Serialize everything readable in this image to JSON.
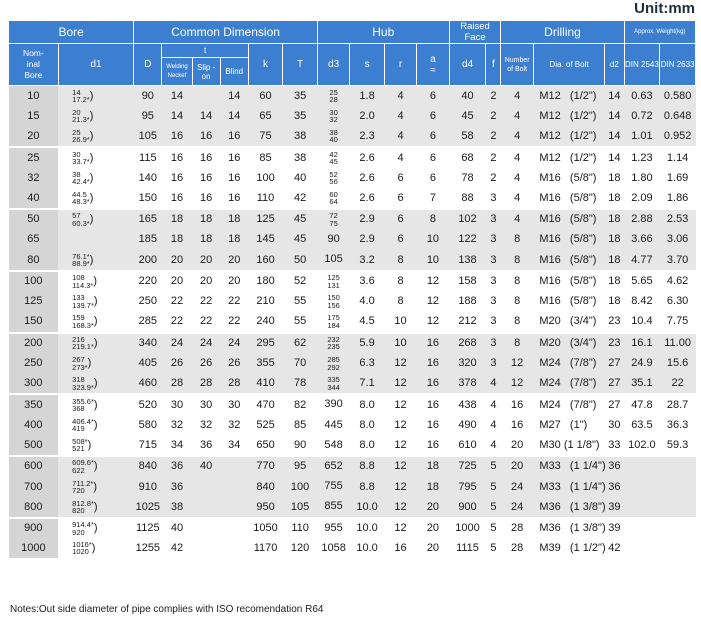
{
  "unit": "Unit:mm",
  "header": {
    "bore": "Bore",
    "common_dimension": "Common Dimension",
    "hub": "Hub",
    "raised_face": "Raised Face",
    "drilling": "Drilling",
    "approx_weight": "Approx. Weight(kg)",
    "nominal_bore": "Nom-\ninal\nBore",
    "d1": "d1",
    "D": "D",
    "t": "t",
    "welding_neck": "Welding Neckef",
    "slip_on": "Slip -on",
    "blind": "Blind",
    "k": "k",
    "T": "T",
    "d3": "d3",
    "s": "s",
    "r": "r",
    "a": "a",
    "a_sub": "≈",
    "d4": "d4",
    "f": "f",
    "number_of_bolt": "Number of Bolt",
    "dia_of_bolt": "Dia. of Bolt",
    "d2": "d2",
    "din2543": "DIN 2543",
    "din2633": "DIN 2633"
  },
  "rows": [
    {
      "nb": "10",
      "d1a": "14",
      "d1b": "17.2*",
      "D": "90",
      "wn": "14",
      "so": "",
      "bl": "14",
      "k": "60",
      "T": "35",
      "d3a": "25",
      "d3b": "28",
      "s": "1.8",
      "r": "4",
      "a": "6",
      "d4": "40",
      "f": "2",
      "n": "4",
      "bolt": "M12   (1/2\")",
      "d2": "14",
      "w1": "0.63",
      "w2": "0.580"
    },
    {
      "nb": "15",
      "d1a": "20",
      "d1b": "21.3*",
      "D": "95",
      "wn": "14",
      "so": "14",
      "bl": "14",
      "k": "65",
      "T": "35",
      "d3a": "30",
      "d3b": "32",
      "s": "2.0",
      "r": "4",
      "a": "6",
      "d4": "45",
      "f": "2",
      "n": "4",
      "bolt": "M12   (1/2\")",
      "d2": "14",
      "w1": "0.72",
      "w2": "0.648"
    },
    {
      "nb": "20",
      "d1a": "25",
      "d1b": "26.9*",
      "D": "105",
      "wn": "16",
      "so": "16",
      "bl": "16",
      "k": "75",
      "T": "38",
      "d3a": "38",
      "d3b": "40",
      "s": "2.3",
      "r": "4",
      "a": "6",
      "d4": "58",
      "f": "2",
      "n": "4",
      "bolt": "M12   (1/2\")",
      "d2": "14",
      "w1": "1.01",
      "w2": "0.952"
    },
    {
      "nb": "25",
      "d1a": "30",
      "d1b": "33.7*",
      "D": "115",
      "wn": "16",
      "so": "16",
      "bl": "16",
      "k": "85",
      "T": "38",
      "d3a": "42",
      "d3b": "45",
      "s": "2.6",
      "r": "4",
      "a": "6",
      "d4": "68",
      "f": "2",
      "n": "4",
      "bolt": "M12   (1/2\")",
      "d2": "14",
      "w1": "1.23",
      "w2": "1.14"
    },
    {
      "nb": "32",
      "d1a": "38",
      "d1b": "42.4*",
      "D": "140",
      "wn": "16",
      "so": "16",
      "bl": "16",
      "k": "100",
      "T": "40",
      "d3a": "52",
      "d3b": "56",
      "s": "2.6",
      "r": "6",
      "a": "6",
      "d4": "78",
      "f": "2",
      "n": "4",
      "bolt": "M16   (5/8\")",
      "d2": "18",
      "w1": "1.80",
      "w2": "1.69"
    },
    {
      "nb": "40",
      "d1a": "44.5",
      "d1b": "48.3*",
      "D": "150",
      "wn": "16",
      "so": "16",
      "bl": "16",
      "k": "110",
      "T": "42",
      "d3a": "60",
      "d3b": "64",
      "s": "2.6",
      "r": "6",
      "a": "7",
      "d4": "88",
      "f": "3",
      "n": "4",
      "bolt": "M16   (5/8\")",
      "d2": "18",
      "w1": "2.09",
      "w2": "1.86"
    },
    {
      "nb": "50",
      "d1a": "57",
      "d1b": "60.3*",
      "D": "165",
      "wn": "18",
      "so": "18",
      "bl": "18",
      "k": "125",
      "T": "45",
      "d3a": "72",
      "d3b": "75",
      "s": "2.9",
      "r": "6",
      "a": "8",
      "d4": "102",
      "f": "3",
      "n": "4",
      "bolt": "M16   (5/8\")",
      "d2": "18",
      "w1": "2.88",
      "w2": "2.53"
    },
    {
      "nb": "65",
      "d1a": "",
      "d1b": "",
      "D": "185",
      "wn": "18",
      "so": "18",
      "bl": "18",
      "k": "145",
      "T": "45",
      "d3a": "90",
      "d3b": "",
      "s": "2.9",
      "r": "6",
      "a": "10",
      "d4": "122",
      "f": "3",
      "n": "8",
      "bolt": "M16   (5/8\")",
      "d2": "18",
      "w1": "3.66",
      "w2": "3.06"
    },
    {
      "nb": "80",
      "d1a": "76.1*",
      "d1b": "88.9*",
      "D": "200",
      "wn": "20",
      "so": "20",
      "bl": "20",
      "k": "160",
      "T": "50",
      "d3a": "105",
      "d3b": "",
      "s": "3.2",
      "r": "8",
      "a": "10",
      "d4": "138",
      "f": "3",
      "n": "8",
      "bolt": "M16   (5/8\")",
      "d2": "18",
      "w1": "4.77",
      "w2": "3.70"
    },
    {
      "nb": "100",
      "d1a": "108",
      "d1b": "114.3*",
      "D": "220",
      "wn": "20",
      "so": "20",
      "bl": "20",
      "k": "180",
      "T": "52",
      "d3a": "125",
      "d3b": "131",
      "s": "3.6",
      "r": "8",
      "a": "12",
      "d4": "158",
      "f": "3",
      "n": "8",
      "bolt": "M16   (5/8\")",
      "d2": "18",
      "w1": "5.65",
      "w2": "4.62"
    },
    {
      "nb": "125",
      "d1a": "133",
      "d1b": "139.7*",
      "D": "250",
      "wn": "22",
      "so": "22",
      "bl": "22",
      "k": "210",
      "T": "55",
      "d3a": "150",
      "d3b": "156",
      "s": "4.0",
      "r": "8",
      "a": "12",
      "d4": "188",
      "f": "3",
      "n": "8",
      "bolt": "M16   (5/8\")",
      "d2": "18",
      "w1": "8.42",
      "w2": "6.30"
    },
    {
      "nb": "150",
      "d1a": "159",
      "d1b": "168.3*",
      "D": "285",
      "wn": "22",
      "so": "22",
      "bl": "22",
      "k": "240",
      "T": "55",
      "d3a": "175",
      "d3b": "184",
      "s": "4.5",
      "r": "10",
      "a": "12",
      "d4": "212",
      "f": "3",
      "n": "8",
      "bolt": "M20   (3/4\")",
      "d2": "23",
      "w1": "10.4",
      "w2": "7.75"
    },
    {
      "nb": "200",
      "d1a": "216",
      "d1b": "219.1*",
      "D": "340",
      "wn": "24",
      "so": "24",
      "bl": "24",
      "k": "295",
      "T": "62",
      "d3a": "232",
      "d3b": "235",
      "s": "5.9",
      "r": "10",
      "a": "16",
      "d4": "268",
      "f": "3",
      "n": "8",
      "bolt": "M20   (3/4\")",
      "d2": "23",
      "w1": "16.1",
      "w2": "11.00"
    },
    {
      "nb": "250",
      "d1a": "267",
      "d1b": "273*",
      "D": "405",
      "wn": "26",
      "so": "26",
      "bl": "26",
      "k": "355",
      "T": "70",
      "d3a": "285",
      "d3b": "292",
      "s": "6.3",
      "r": "12",
      "a": "16",
      "d4": "320",
      "f": "3",
      "n": "12",
      "bolt": "M24   (7/8\")",
      "d2": "27",
      "w1": "24.9",
      "w2": "15.6"
    },
    {
      "nb": "300",
      "d1a": "318",
      "d1b": "323.9*",
      "D": "460",
      "wn": "28",
      "so": "28",
      "bl": "28",
      "k": "410",
      "T": "78",
      "d3a": "335",
      "d3b": "344",
      "s": "7.1",
      "r": "12",
      "a": "16",
      "d4": "378",
      "f": "4",
      "n": "12",
      "bolt": "M24   (7/8\")",
      "d2": "27",
      "w1": "35.1",
      "w2": "22"
    },
    {
      "nb": "350",
      "d1a": "355.6*",
      "d1b": "368",
      "D": "520",
      "wn": "30",
      "so": "30",
      "bl": "30",
      "k": "470",
      "T": "82",
      "d3a": "390",
      "d3b": "",
      "s": "8.0",
      "r": "12",
      "a": "16",
      "d4": "438",
      "f": "4",
      "n": "16",
      "bolt": "M24   (7/8\")",
      "d2": "27",
      "w1": "47.8",
      "w2": "28.7"
    },
    {
      "nb": "400",
      "d1a": "406.4*",
      "d1b": "419",
      "D": "580",
      "wn": "32",
      "so": "32",
      "bl": "32",
      "k": "525",
      "T": "85",
      "d3a": "445",
      "d3b": "",
      "s": "8.0",
      "r": "12",
      "a": "16",
      "d4": "490",
      "f": "4",
      "n": "16",
      "bolt": "M27   (1\")",
      "d2": "30",
      "w1": "63.5",
      "w2": "36.3"
    },
    {
      "nb": "500",
      "d1a": "508*",
      "d1b": "521",
      "D": "715",
      "wn": "34",
      "so": "36",
      "bl": "34",
      "k": "650",
      "T": "90",
      "d3a": "548",
      "d3b": "",
      "s": "8.0",
      "r": "12",
      "a": "16",
      "d4": "610",
      "f": "4",
      "n": "20",
      "bolt": "M30 (1 1/8\")",
      "d2": "33",
      "w1": "102.0",
      "w2": "59.3"
    },
    {
      "nb": "600",
      "d1a": "609.6*",
      "d1b": "622",
      "D": "840",
      "wn": "36",
      "so": "40",
      "bl": "",
      "k": "770",
      "T": "95",
      "d3a": "652",
      "d3b": "",
      "s": "8.8",
      "r": "12",
      "a": "18",
      "d4": "725",
      "f": "5",
      "n": "20",
      "bolt": "M33   (1 1/4\")",
      "d2": "36",
      "w1": "",
      "w2": ""
    },
    {
      "nb": "700",
      "d1a": "711.2*",
      "d1b": "720",
      "D": "910",
      "wn": "36",
      "so": "",
      "bl": "",
      "k": "840",
      "T": "100",
      "d3a": "755",
      "d3b": "",
      "s": "8.8",
      "r": "12",
      "a": "18",
      "d4": "795",
      "f": "5",
      "n": "24",
      "bolt": "M33   (1 1/4\")",
      "d2": "36",
      "w1": "",
      "w2": ""
    },
    {
      "nb": "800",
      "d1a": "812.8*",
      "d1b": "820",
      "D": "1025",
      "wn": "38",
      "so": "",
      "bl": "",
      "k": "950",
      "T": "105",
      "d3a": "855",
      "d3b": "",
      "s": "10.0",
      "r": "12",
      "a": "20",
      "d4": "900",
      "f": "5",
      "n": "24",
      "bolt": "M36   (1 3/8\")",
      "d2": "39",
      "w1": "",
      "w2": ""
    },
    {
      "nb": "900",
      "d1a": "914.4*",
      "d1b": "920",
      "D": "1125",
      "wn": "40",
      "so": "",
      "bl": "",
      "k": "1050",
      "T": "110",
      "d3a": "955",
      "d3b": "",
      "s": "10.0",
      "r": "12",
      "a": "20",
      "d4": "1000",
      "f": "5",
      "n": "28",
      "bolt": "M36   (1 3/8\")",
      "d2": "39",
      "w1": "",
      "w2": ""
    },
    {
      "nb": "1000",
      "d1a": "1016*",
      "d1b": "1020",
      "D": "1255",
      "wn": "42",
      "so": "",
      "bl": "",
      "k": "1170",
      "T": "120",
      "d3a": "1058",
      "d3b": "",
      "s": "10.0",
      "r": "16",
      "a": "20",
      "d4": "1115",
      "f": "5",
      "n": "28",
      "bolt": "M39   (1 1/2\")",
      "d2": "42",
      "w1": "",
      "w2": ""
    }
  ],
  "note": "Notes:Out side diameter of pipe complies with ISO recomendation R64"
}
